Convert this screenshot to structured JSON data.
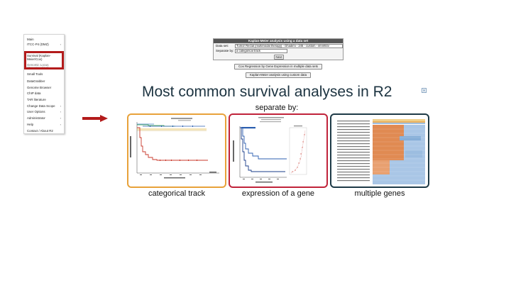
{
  "menu": {
    "items": [
      {
        "label": "Main",
        "arrow": false
      },
      {
        "label": "ITCC-P4 (DMZ)",
        "arrow": true
      },
      {
        "label": "Survival (Kaplan-",
        "arrow": false
      },
      {
        "label": "Meier/Cox)",
        "arrow": false
      },
      {
        "label": "Genomic Locus",
        "arrow": false
      },
      {
        "label": "(Genome View)",
        "arrow": false
      },
      {
        "label": "Small Tools",
        "arrow": false
      },
      {
        "label": "DataGrabber",
        "arrow": false
      },
      {
        "label": "Genome Browser",
        "arrow": false
      },
      {
        "label": "ChIP data",
        "arrow": false
      },
      {
        "label": "TAR literature",
        "arrow": false
      },
      {
        "label": "Change Data Scope",
        "arrow": true
      },
      {
        "label": "User Options",
        "arrow": true
      },
      {
        "label": "Administrator",
        "arrow": true
      },
      {
        "label": "Help",
        "arrow": true
      },
      {
        "label": "Contact / About R2",
        "arrow": false
      }
    ]
  },
  "km_form": {
    "title": "Kaplan-Meier analysis using a data set",
    "dataset_label": "Data set:",
    "dataset_value": "Tumor Rectal (multimodal therapy) - Ghadimi - 245 - custom - ilmnht4v",
    "separate_label": "Separate by:",
    "separate_value": "a categorical track",
    "next_label": "Next"
  },
  "buttons": {
    "cox": "Cox Regression by Gene Expression in multiple data sets",
    "custom": "Kaplan-Meier analysis using custom data"
  },
  "headline": "Most common survival analyses in R2",
  "subhead": "separate by:",
  "cards": [
    {
      "caption": "categorical track",
      "border": "#e8a23a"
    },
    {
      "caption": "expression of a gene",
      "border": "#c0233a"
    },
    {
      "caption": "multiple genes",
      "border": "#1e3a47"
    }
  ],
  "colors": {
    "highlight": "#b31b1b",
    "arrow": "#b31b1b",
    "headline": "#1c3340"
  }
}
